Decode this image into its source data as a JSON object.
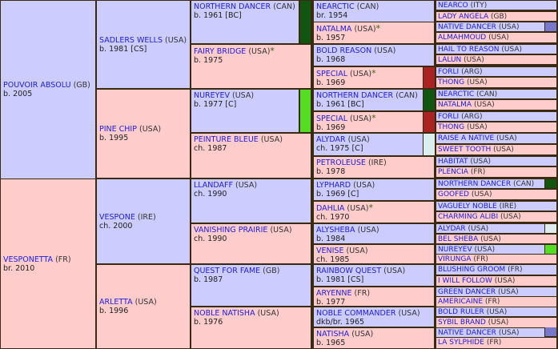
{
  "colors": {
    "male_bg": "#ccccff",
    "female_bg": "#ffcccc",
    "link": "#2020dd",
    "border": "#3a2a12",
    "northern_dancer": "#115511",
    "nureyev": "#55dd22",
    "special": "#aa2222",
    "alydar": "#ddeeee",
    "native_dancer": "#7777cc"
  },
  "horses": [
    {
      "id": "g0_sire",
      "name": "POUVOIR ABSOLU",
      "country": "(GB)",
      "born": "b. 2005",
      "star": false,
      "sex": "m"
    },
    {
      "id": "g0_dam",
      "name": "VESPONETTA",
      "country": "(FR)",
      "born": "br. 2010",
      "star": false,
      "sex": "f"
    },
    {
      "id": "g1_0",
      "name": "SADLERS WELLS",
      "country": "(USA)",
      "born": "b. 1981 [CS]",
      "star": false,
      "sex": "m"
    },
    {
      "id": "g1_1",
      "name": "PINE CHIP",
      "country": "(USA)",
      "born": "b. 1995",
      "star": false,
      "sex": "f"
    },
    {
      "id": "g1_2",
      "name": "VESPONE",
      "country": "(IRE)",
      "born": "ch. 2000",
      "star": false,
      "sex": "m"
    },
    {
      "id": "g1_3",
      "name": "ARLETTA",
      "country": "(USA)",
      "born": "b. 1996",
      "star": false,
      "sex": "f"
    },
    {
      "id": "g2_0",
      "name": "NORTHERN DANCER",
      "country": "(CAN)",
      "born": "b. 1961 [BC]",
      "star": false,
      "sex": "m"
    },
    {
      "id": "g2_1",
      "name": "FAIRY BRIDGE",
      "country": "(USA)",
      "born": "b. 1975",
      "star": true,
      "sex": "f"
    },
    {
      "id": "g2_2",
      "name": "NUREYEV",
      "country": "(USA)",
      "born": "b. 1977 [C]",
      "star": false,
      "sex": "m"
    },
    {
      "id": "g2_3",
      "name": "PEINTURE BLEUE",
      "country": "(USA)",
      "born": "ch. 1987",
      "star": false,
      "sex": "f"
    },
    {
      "id": "g2_4",
      "name": "LLANDAFF",
      "country": "(USA)",
      "born": "ch. 1990",
      "star": false,
      "sex": "m"
    },
    {
      "id": "g2_5",
      "name": "VANISHING PRAIRIE",
      "country": "(USA)",
      "born": "ch. 1990",
      "star": false,
      "sex": "f"
    },
    {
      "id": "g2_6",
      "name": "QUEST FOR FAME",
      "country": "(GB)",
      "born": "b. 1987",
      "star": false,
      "sex": "m"
    },
    {
      "id": "g2_7",
      "name": "NOBLE NATISHA",
      "country": "(USA)",
      "born": "b. 1976",
      "star": false,
      "sex": "f"
    },
    {
      "id": "g3_0",
      "name": "NEARCTIC",
      "country": "(CAN)",
      "born": "br. 1954",
      "star": false,
      "sex": "m"
    },
    {
      "id": "g3_1",
      "name": "NATALMA",
      "country": "(USA)",
      "born": "b. 1957",
      "star": true,
      "sex": "f"
    },
    {
      "id": "g3_2",
      "name": "BOLD REASON",
      "country": "(USA)",
      "born": "b. 1968",
      "star": false,
      "sex": "m"
    },
    {
      "id": "g3_3",
      "name": "SPECIAL",
      "country": "(USA)",
      "born": "b. 1969",
      "star": true,
      "sex": "f"
    },
    {
      "id": "g3_4",
      "name": "NORTHERN DANCER",
      "country": "(CAN)",
      "born": "b. 1961 [BC]",
      "star": false,
      "sex": "m"
    },
    {
      "id": "g3_5",
      "name": "SPECIAL",
      "country": "(USA)",
      "born": "b. 1969",
      "star": true,
      "sex": "f"
    },
    {
      "id": "g3_6",
      "name": "ALYDAR",
      "country": "(USA)",
      "born": "ch. 1975 [C]",
      "star": false,
      "sex": "m"
    },
    {
      "id": "g3_7",
      "name": "PETROLEUSE",
      "country": "(IRE)",
      "born": "b. 1978",
      "star": false,
      "sex": "f"
    },
    {
      "id": "g3_8",
      "name": "LYPHARD",
      "country": "(USA)",
      "born": "b. 1969 [C]",
      "star": false,
      "sex": "m"
    },
    {
      "id": "g3_9",
      "name": "DAHLIA",
      "country": "(USA)",
      "born": "ch. 1970",
      "star": true,
      "sex": "f"
    },
    {
      "id": "g3_10",
      "name": "ALYSHEBA",
      "country": "(USA)",
      "born": "b. 1984",
      "star": false,
      "sex": "m"
    },
    {
      "id": "g3_11",
      "name": "VENISE",
      "country": "(USA)",
      "born": "ch. 1985",
      "star": false,
      "sex": "f"
    },
    {
      "id": "g3_12",
      "name": "RAINBOW QUEST",
      "country": "(USA)",
      "born": "b. 1981 [CS]",
      "star": false,
      "sex": "m"
    },
    {
      "id": "g3_13",
      "name": "ARYENNE",
      "country": "(FR)",
      "born": "b. 1977",
      "star": false,
      "sex": "f"
    },
    {
      "id": "g3_14",
      "name": "NOBLE COMMANDER",
      "country": "(USA)",
      "born": "dkb/br. 1965",
      "star": false,
      "sex": "m"
    },
    {
      "id": "g3_15",
      "name": "NATISHA",
      "country": "(USA)",
      "born": "b. 1965",
      "star": false,
      "sex": "f"
    },
    {
      "id": "g4_0",
      "name": "NEARCO",
      "country": "(ITY)",
      "sex": "m"
    },
    {
      "id": "g4_1",
      "name": "LADY ANGELA",
      "country": "(GB)",
      "sex": "f"
    },
    {
      "id": "g4_2",
      "name": "NATIVE DANCER",
      "country": "(USA)",
      "sex": "m"
    },
    {
      "id": "g4_3",
      "name": "ALMAHMOUD",
      "country": "(USA)",
      "sex": "f"
    },
    {
      "id": "g4_4",
      "name": "HAIL TO REASON",
      "country": "(USA)",
      "sex": "m"
    },
    {
      "id": "g4_5",
      "name": "LALUN",
      "country": "(USA)",
      "sex": "f"
    },
    {
      "id": "g4_6",
      "name": "FORLI",
      "country": "(ARG)",
      "sex": "m"
    },
    {
      "id": "g4_7",
      "name": "THONG",
      "country": "(USA)",
      "sex": "f"
    },
    {
      "id": "g4_8",
      "name": "NEARCTIC",
      "country": "(CAN)",
      "sex": "m"
    },
    {
      "id": "g4_9",
      "name": "NATALMA",
      "country": "(USA)",
      "sex": "f"
    },
    {
      "id": "g4_10",
      "name": "FORLI",
      "country": "(ARG)",
      "sex": "m"
    },
    {
      "id": "g4_11",
      "name": "THONG",
      "country": "(USA)",
      "sex": "f"
    },
    {
      "id": "g4_12",
      "name": "RAISE A NATIVE",
      "country": "(USA)",
      "sex": "m"
    },
    {
      "id": "g4_13",
      "name": "SWEET TOOTH",
      "country": "(USA)",
      "sex": "f"
    },
    {
      "id": "g4_14",
      "name": "HABITAT",
      "country": "(USA)",
      "sex": "m"
    },
    {
      "id": "g4_15",
      "name": "PLENCIA",
      "country": "(FR)",
      "sex": "f"
    },
    {
      "id": "g4_16",
      "name": "NORTHERN DANCER",
      "country": "(CAN)",
      "sex": "m"
    },
    {
      "id": "g4_17",
      "name": "GOOFED",
      "country": "(USA)",
      "sex": "f"
    },
    {
      "id": "g4_18",
      "name": "VAGUELY NOBLE",
      "country": "(IRE)",
      "sex": "m"
    },
    {
      "id": "g4_19",
      "name": "CHARMING ALIBI",
      "country": "(USA)",
      "sex": "f"
    },
    {
      "id": "g4_20",
      "name": "ALYDAR",
      "country": "(USA)",
      "sex": "m"
    },
    {
      "id": "g4_21",
      "name": "BEL SHEBA",
      "country": "(USA)",
      "sex": "f"
    },
    {
      "id": "g4_22",
      "name": "NUREYEV",
      "country": "(USA)",
      "sex": "m"
    },
    {
      "id": "g4_23",
      "name": "VIRUNGA",
      "country": "(FR)",
      "sex": "f"
    },
    {
      "id": "g4_24",
      "name": "BLUSHING GROOM",
      "country": "(FR)",
      "sex": "m"
    },
    {
      "id": "g4_25",
      "name": "I WILL FOLLOW",
      "country": "(USA)",
      "sex": "f"
    },
    {
      "id": "g4_26",
      "name": "GREEN DANCER",
      "country": "(USA)",
      "sex": "m"
    },
    {
      "id": "g4_27",
      "name": "AMERICAINE",
      "country": "(FR)",
      "sex": "f"
    },
    {
      "id": "g4_28",
      "name": "BOLD RULER",
      "country": "(USA)",
      "sex": "m"
    },
    {
      "id": "g4_29",
      "name": "SYBIL BRAND",
      "country": "(USA)",
      "sex": "f"
    },
    {
      "id": "g4_30",
      "name": "NATIVE DANCER",
      "country": "(USA)",
      "sex": "m"
    },
    {
      "id": "g4_31",
      "name": "LA SYLPHIDE",
      "country": "(FR)",
      "sex": "f"
    }
  ],
  "star_glyph": "*"
}
